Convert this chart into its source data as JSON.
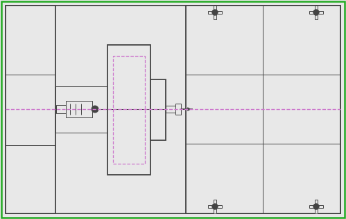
{
  "bg_color": "#e8e8e8",
  "line_color": "#444444",
  "dashed_line_color": "#cc77cc",
  "green_border_color": "#22aa22",
  "light_dashed_color": "#bbbbbb",
  "dot_color": "#aaaaaa",
  "fig_width": 4.99,
  "fig_height": 3.17,
  "dpi": 100,
  "lw_main": 1.3,
  "lw_thin": 0.7,
  "lw_med": 1.0
}
